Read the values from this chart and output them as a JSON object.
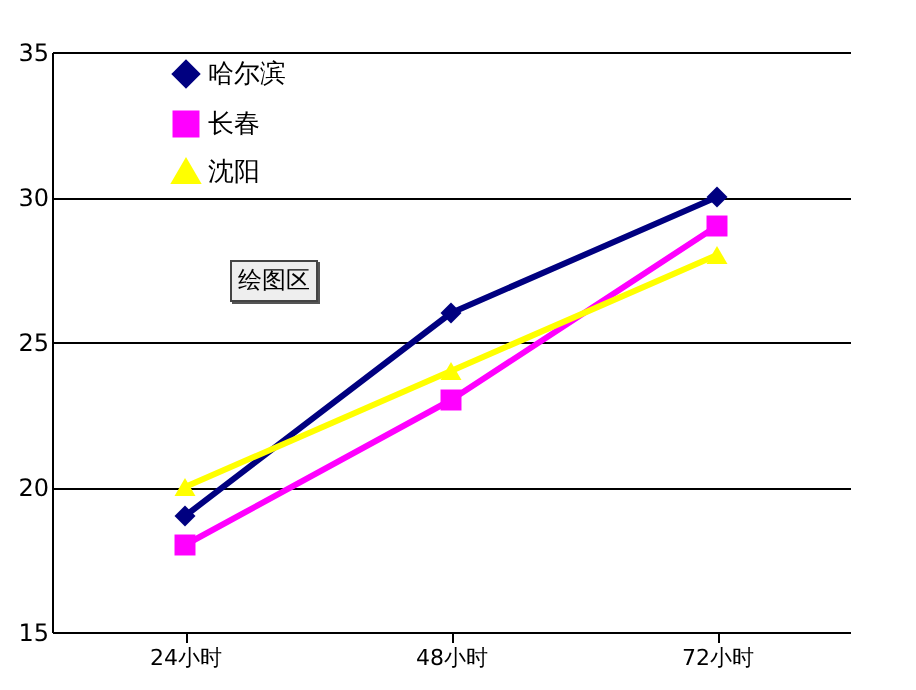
{
  "chart_data": {
    "type": "line",
    "categories": [
      "24小时",
      "48小时",
      "72小时"
    ],
    "series": [
      {
        "name": "哈尔滨",
        "color": "#000080",
        "marker": "diamond",
        "values": [
          19,
          26,
          30
        ]
      },
      {
        "name": "长春",
        "color": "#ff00ff",
        "marker": "square",
        "values": [
          18,
          23,
          29
        ]
      },
      {
        "name": "沈阳",
        "color": "#ffff00",
        "marker": "triangle",
        "values": [
          20,
          24,
          28
        ]
      }
    ],
    "ylim": [
      15,
      35
    ],
    "yticks": [
      15,
      20,
      25,
      30,
      35
    ],
    "grid": "y",
    "legend": "top left",
    "annotations": [
      "绘图区"
    ]
  }
}
